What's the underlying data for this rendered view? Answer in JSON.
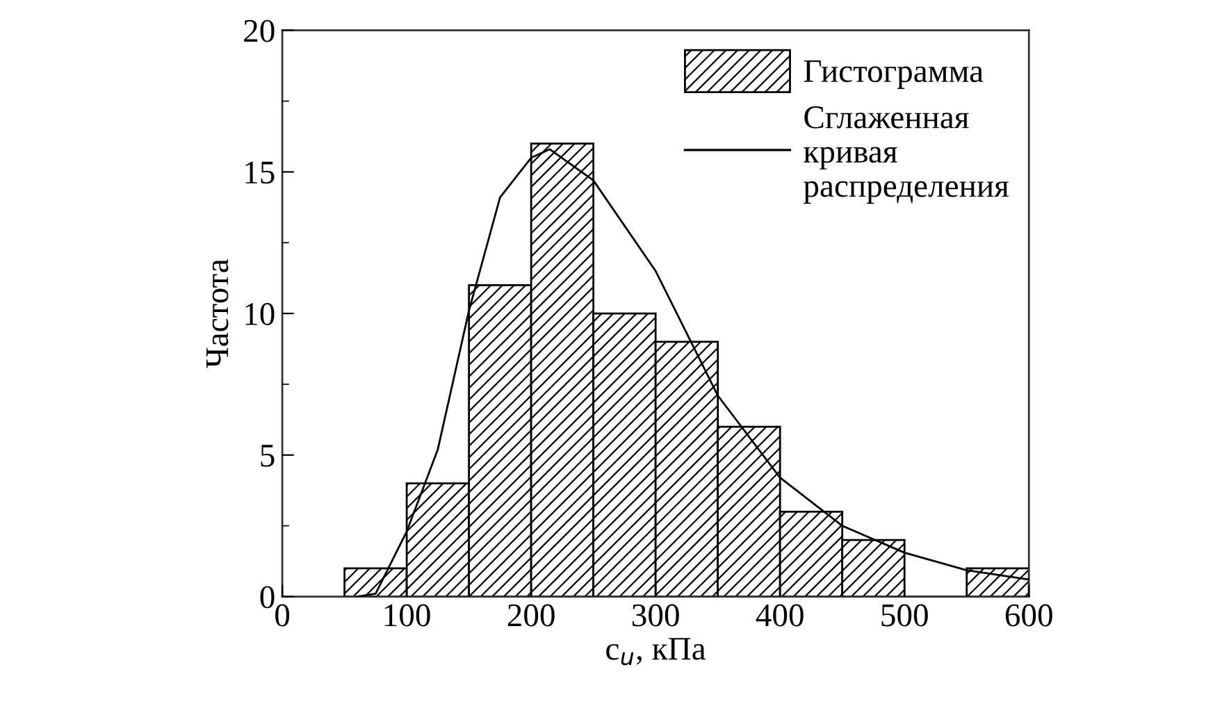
{
  "chart_data": {
    "type": "histogram",
    "xlabel": "c$_{u}$, кПа",
    "ylabel": "Частота",
    "bins": [
      50,
      100,
      150,
      200,
      250,
      300,
      350,
      400,
      450,
      500,
      550,
      600
    ],
    "series": [
      {
        "name": "Гистограмма",
        "color": "#000000",
        "values": [
          1,
          4,
          11,
          16,
          10,
          9,
          6,
          3,
          2,
          0,
          1
        ]
      },
      {
        "type": "line",
        "name": "Сглаженная\nкривая\nраспределения",
        "color": "#000000",
        "x": [
          60,
          75,
          100,
          125,
          150,
          175,
          200,
          215,
          250,
          300,
          350,
          400,
          450,
          500,
          550,
          600
        ],
        "values": [
          0,
          0.1,
          2.3,
          5.2,
          10.1,
          14.1,
          15.5,
          15.8,
          14.7,
          11.5,
          7.1,
          4.2,
          2.5,
          1.55,
          0.93,
          0.6
        ]
      }
    ],
    "xlim": [
      0,
      600
    ],
    "ylim": [
      0,
      20
    ],
    "xticks": [
      0,
      {
        "value": 50,
        "label": null
      },
      100,
      {
        "value": 150,
        "label": null
      },
      200,
      {
        "value": 250,
        "label": null
      },
      300,
      {
        "value": 350,
        "label": null
      },
      400,
      {
        "value": 450,
        "label": null
      },
      500,
      {
        "value": 550,
        "label": null
      },
      600
    ],
    "yticks": [
      0,
      {
        "value": 2.5,
        "label": null
      },
      5,
      {
        "value": 7.5,
        "label": null
      },
      10,
      {
        "value": 12.5,
        "label": null
      },
      15,
      {
        "value": 17.5,
        "label": null
      },
      20
    ],
    "grid": false,
    "legend": "top right"
  }
}
